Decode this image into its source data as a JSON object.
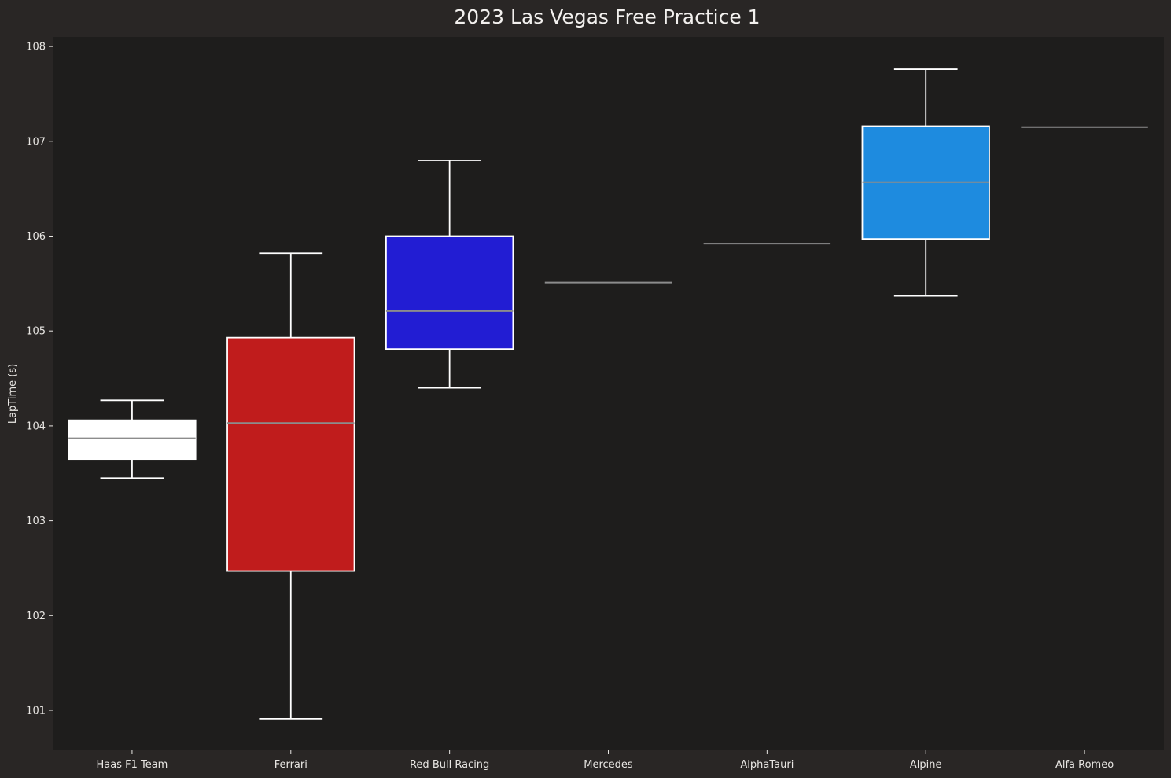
{
  "chart_data": {
    "type": "box",
    "title": "2023 Las Vegas Free Practice 1",
    "xlabel": "",
    "ylabel": "LapTime (s)",
    "ylim": [
      100.55,
      108.1
    ],
    "yticks": [
      101,
      102,
      103,
      104,
      105,
      106,
      107,
      108
    ],
    "grid": false,
    "legend": "none",
    "categories": [
      "Haas F1 Team",
      "Ferrari",
      "Red Bull Racing",
      "Mercedes",
      "AlphaTauri",
      "Alpine",
      "Alfa Romeo"
    ],
    "boxes": [
      {
        "team": "Haas F1 Team",
        "whisker_low": 103.45,
        "q1": 103.65,
        "median": 103.87,
        "q3": 104.06,
        "whisker_high": 104.27,
        "color": "#ffffff"
      },
      {
        "team": "Ferrari",
        "whisker_low": 100.91,
        "q1": 102.47,
        "median": 104.03,
        "q3": 104.93,
        "whisker_high": 105.82,
        "color": "#c01c1c"
      },
      {
        "team": "Red Bull Racing",
        "whisker_low": 104.4,
        "q1": 104.81,
        "median": 105.21,
        "q3": 106.0,
        "whisker_high": 106.8,
        "color": "#221dd3"
      },
      {
        "team": "Mercedes",
        "whisker_low": 105.51,
        "q1": 105.51,
        "median": 105.51,
        "q3": 105.51,
        "whisker_high": 105.51,
        "color": "#00d2be"
      },
      {
        "team": "AlphaTauri",
        "whisker_low": 105.92,
        "q1": 105.92,
        "median": 105.92,
        "q3": 105.92,
        "whisker_high": 105.92,
        "color": "#5e8faa"
      },
      {
        "team": "Alpine",
        "whisker_low": 105.37,
        "q1": 105.97,
        "median": 106.57,
        "q3": 107.16,
        "whisker_high": 107.76,
        "color": "#1e8bdf"
      },
      {
        "team": "Alfa Romeo",
        "whisker_low": 107.15,
        "q1": 107.15,
        "median": 107.15,
        "q3": 107.15,
        "whisker_high": 107.15,
        "color": "#900000"
      }
    ],
    "colors": {
      "figure_background": "#292625",
      "plot_background": "#1e1d1c",
      "box_edge": "#ffffff",
      "median_line": "#8c8c8c",
      "text": "#e8e6e3"
    }
  }
}
